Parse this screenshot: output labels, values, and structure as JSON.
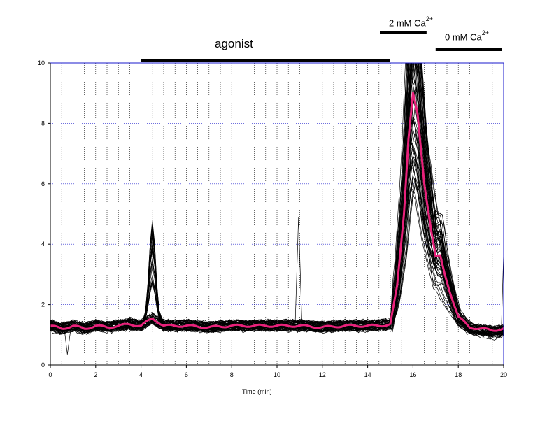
{
  "chart_data": {
    "type": "line",
    "title": "",
    "xlabel": "Time (min)",
    "ylabel": "",
    "xlim": [
      0,
      20
    ],
    "ylim": [
      0,
      10
    ],
    "x_ticks": [
      "0",
      "2",
      "4",
      "6",
      "8",
      "10",
      "12",
      "14",
      "16",
      "18",
      "20"
    ],
    "y_ticks": [
      "0",
      "2",
      "4",
      "6",
      "8",
      "10"
    ],
    "grid": true,
    "annotations": [
      {
        "name": "agonist",
        "label": "agonist",
        "x_start": 4,
        "x_end": 15
      },
      {
        "name": "ca2",
        "label": "2 mM Ca",
        "sup": "2+",
        "x_start": 15,
        "x_end": 16.6
      },
      {
        "name": "ca0",
        "label": "0 mM Ca",
        "sup": "2+",
        "x_start": 17,
        "x_end": 20
      }
    ],
    "series_count": 60,
    "series_color": "#000000",
    "mean_color": "#e8217a",
    "mean_series": {
      "x": [
        0,
        0.5,
        1,
        1.5,
        2,
        2.5,
        3,
        3.5,
        4,
        4.5,
        5,
        6,
        7,
        8,
        9,
        10,
        11,
        12,
        13,
        14,
        14.5,
        15,
        15.3,
        15.6,
        15.8,
        16,
        16.2,
        16.5,
        16.8,
        17,
        17.2,
        17.4,
        17.6,
        18,
        18.5,
        19,
        19.5,
        20
      ],
      "y": [
        1.3,
        1.2,
        1.3,
        1.2,
        1.3,
        1.25,
        1.3,
        1.35,
        1.3,
        1.55,
        1.3,
        1.3,
        1.25,
        1.3,
        1.3,
        1.3,
        1.3,
        1.25,
        1.3,
        1.3,
        1.3,
        1.35,
        2.6,
        5.0,
        7.5,
        9.0,
        8.3,
        6.0,
        4.5,
        3.6,
        3.6,
        3.0,
        2.5,
        1.6,
        1.25,
        1.2,
        1.15,
        1.2
      ]
    }
  }
}
